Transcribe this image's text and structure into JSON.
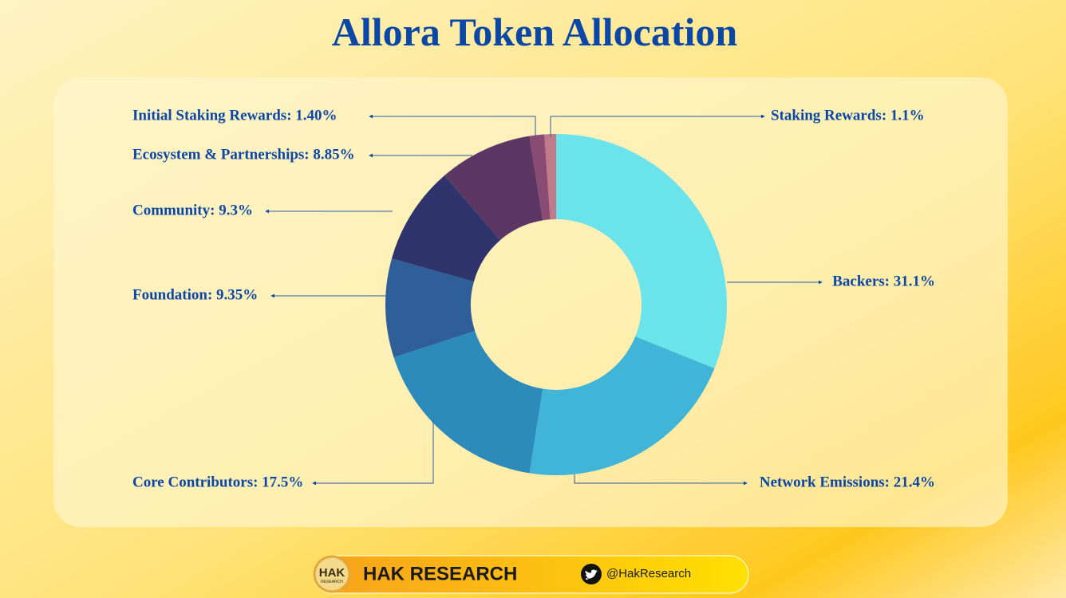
{
  "chart_data": {
    "type": "donut",
    "title": "Allora Token Allocation",
    "values": [
      31.1,
      21.4,
      17.5,
      9.35,
      9.3,
      8.85,
      1.4,
      1.1
    ],
    "value_labels": [
      "Backers: 31.1%",
      "Network Emissions: 21.4%",
      "Core Contributors: 17.5%",
      "Foundation: 9.35%",
      "Community: 9.3%",
      "Ecosystem & Partnerships: 8.85%",
      "Initial Staking Rewards: 1.40%",
      "Staking Rewards: 1.1%"
    ],
    "colors": [
      "#6ae4ea",
      "#41b5d7",
      "#2d8bbb",
      "#2e5f98",
      "#2f346c",
      "#5c3764",
      "#8a4b74",
      "#c07a8a"
    ]
  },
  "footer": {
    "logo": "HAK",
    "logo_sub": "RESEARCH",
    "brand": "HAK RESEARCH",
    "handle": "@HakResearch"
  }
}
